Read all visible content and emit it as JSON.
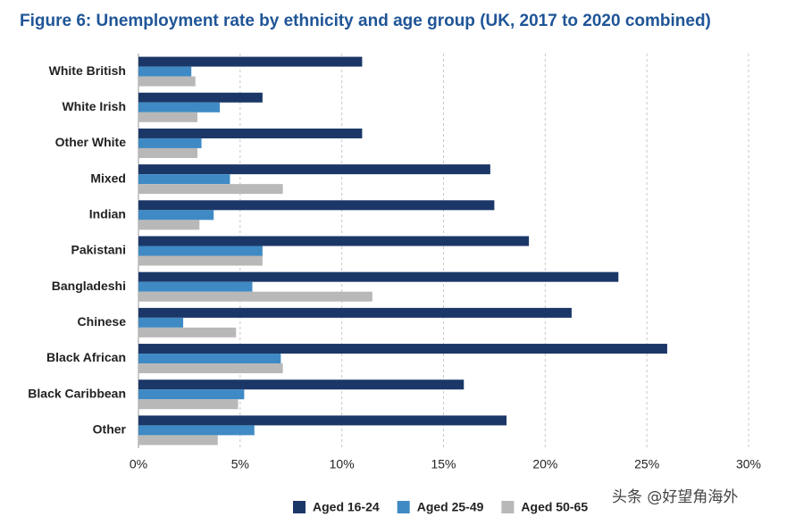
{
  "chart_data": {
    "type": "hbar",
    "title": "Figure 6: Unemployment rate by ethnicity and age group (UK, 2017 to 2020 combined)",
    "categories": [
      "White British",
      "White Irish",
      "Other White",
      "Mixed",
      "Indian",
      "Pakistani",
      "Bangladeshi",
      "Chinese",
      "Black African",
      "Black Caribbean",
      "Other"
    ],
    "series": [
      {
        "name": "Aged 16-24",
        "color": "#1b3768",
        "values": [
          11.0,
          6.1,
          11.0,
          17.3,
          17.5,
          19.2,
          23.6,
          21.3,
          26.0,
          16.0,
          18.1
        ]
      },
      {
        "name": "Aged 25-49",
        "color": "#3f8ac4",
        "values": [
          2.6,
          4.0,
          3.1,
          4.5,
          3.7,
          6.1,
          5.6,
          2.2,
          7.0,
          5.2,
          5.7
        ]
      },
      {
        "name": "Aged 50-65",
        "color": "#b8b8b8",
        "values": [
          2.8,
          2.9,
          2.9,
          7.1,
          3.0,
          6.1,
          11.5,
          4.8,
          7.1,
          4.9,
          3.9
        ]
      }
    ],
    "xlim": [
      0,
      30
    ],
    "xticks": [
      {
        "value": 0,
        "label": "0%"
      },
      {
        "value": 5,
        "label": "5%"
      },
      {
        "value": 10,
        "label": "10%"
      },
      {
        "value": 15,
        "label": "15%"
      },
      {
        "value": 20,
        "label": "20%"
      },
      {
        "value": 25,
        "label": "25%"
      },
      {
        "value": 30,
        "label": "30%"
      }
    ],
    "grid": true,
    "legend": "bottom",
    "watermark": "头条 @好望角海外"
  }
}
